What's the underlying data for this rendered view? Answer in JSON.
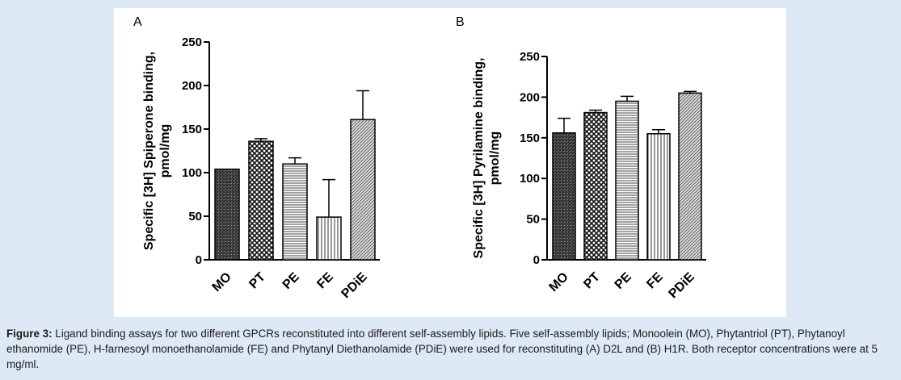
{
  "caption": {
    "label": "Figure 3:",
    "text": " Ligand binding assays for two different GPCRs reconstituted into different self-assembly lipids.  Five self-assembly lipids; Monoolein (MO), Phytantriol (PT), Phytanoyl ethanomide (PE), H-farnesoyl monoethanolamide (FE) and Phytanyl Diethanolamide (PDiE) were used for reconstituting (A) D2L and (B) H1R. Both receptor concentrations were at 5 mg/ml."
  },
  "chart_data": [
    {
      "type": "bar",
      "panel_label": "A",
      "categories": [
        "MO",
        "PT",
        "PE",
        "FE",
        "PDiE"
      ],
      "values": [
        104,
        136,
        110,
        49,
        161
      ],
      "errors": [
        0,
        3,
        7,
        43,
        33
      ],
      "ylabel_line1": "Specific [3H] Spiperone binding,",
      "ylabel_line2": "pmol/mg",
      "ylim": [
        0,
        250
      ],
      "yticks": [
        0,
        50,
        100,
        150,
        200,
        250
      ],
      "ytick_labels": [
        "0",
        "50",
        "100",
        "150",
        "200",
        "250"
      ],
      "patterns": [
        "crosshatch-dark",
        "checker",
        "hlines",
        "vlines",
        "diagonal"
      ],
      "grid": false
    },
    {
      "type": "bar",
      "panel_label": "B",
      "categories": [
        "MO",
        "PT",
        "PE",
        "FE",
        "PDiE"
      ],
      "values": [
        156,
        181,
        195,
        155,
        205
      ],
      "errors": [
        18,
        3,
        6,
        5,
        2
      ],
      "ylabel_line1": "Specific [3H] Pyrilamine binding,",
      "ylabel_line2": "pmol/mg",
      "ylim": [
        0,
        250
      ],
      "yticks": [
        0,
        50,
        100,
        150,
        200,
        250
      ],
      "ytick_labels": [
        "0",
        "50",
        "100",
        "150",
        "200",
        "250"
      ],
      "patterns": [
        "crosshatch-dark",
        "checker",
        "hlines",
        "vlines",
        "diagonal"
      ],
      "grid": false
    }
  ]
}
